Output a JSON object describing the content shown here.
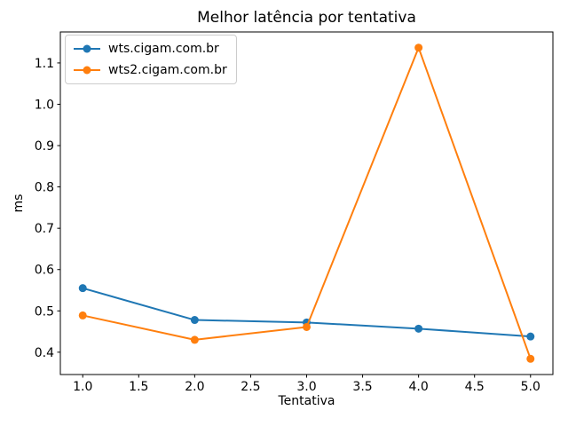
{
  "chart_data": {
    "type": "line",
    "title": "Melhor latência por tentativa",
    "xlabel": "Tentativa",
    "ylabel": "ms",
    "x": [
      1,
      2,
      3,
      4,
      5
    ],
    "series": [
      {
        "name": "wts.cigam.com.br",
        "color": "#1f77b4",
        "values": [
          0.555,
          0.478,
          0.472,
          0.457,
          0.438
        ]
      },
      {
        "name": "wts2.cigam.com.br",
        "color": "#ff7f0e",
        "values": [
          0.489,
          0.43,
          0.461,
          1.137,
          0.384
        ]
      }
    ],
    "xlim": [
      0.8,
      5.2
    ],
    "ylim": [
      0.346,
      1.175
    ],
    "x_ticks": [
      1.0,
      1.5,
      2.0,
      2.5,
      3.0,
      3.5,
      4.0,
      4.5,
      5.0
    ],
    "y_ticks": [
      0.4,
      0.5,
      0.6,
      0.7,
      0.8,
      0.9,
      1.0,
      1.1
    ],
    "marker": "o",
    "grid": false,
    "legend_position": "upper left"
  }
}
